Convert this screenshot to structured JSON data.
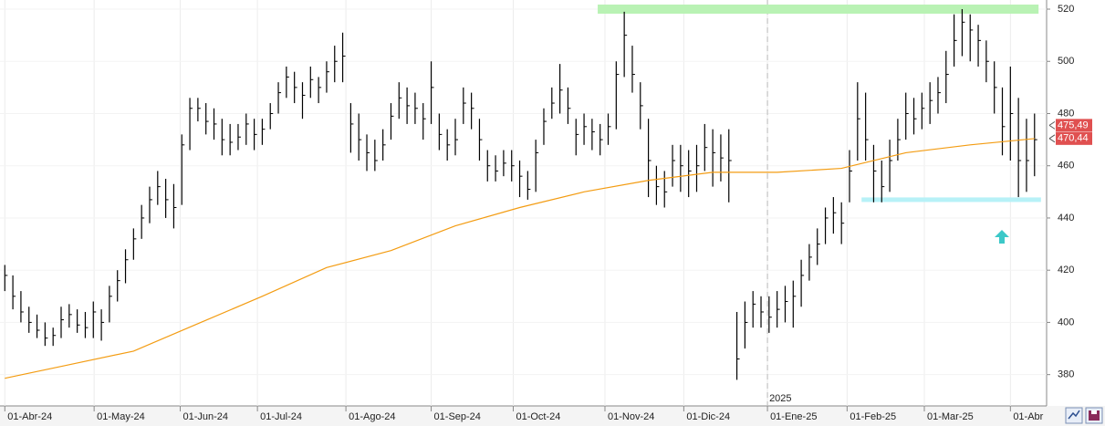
{
  "chart_data": {
    "type": "hlc",
    "x": [
      0,
      1,
      2,
      3,
      4,
      5,
      6,
      7,
      8,
      9,
      10,
      11,
      12,
      13,
      14,
      15,
      16,
      17,
      18,
      19,
      20,
      21,
      22,
      23,
      24,
      25,
      26,
      27,
      28,
      29,
      30,
      31,
      32,
      33,
      34,
      35,
      36,
      37,
      38,
      39,
      40,
      41,
      42,
      43,
      44,
      45,
      46,
      47,
      48,
      49,
      50,
      51,
      52,
      53,
      54,
      55,
      56,
      57,
      58,
      59,
      60,
      61,
      62,
      63,
      64,
      65,
      66,
      67,
      68,
      69,
      70,
      71,
      72,
      73,
      74,
      75,
      76,
      77,
      78,
      79,
      80,
      81,
      82,
      83,
      84,
      85,
      86,
      87,
      88,
      89,
      90,
      91,
      92,
      93,
      94,
      95,
      96,
      97,
      98,
      99,
      100,
      101,
      102,
      103,
      104,
      105,
      106,
      107,
      108,
      109,
      110,
      111,
      112,
      113,
      114,
      115,
      116,
      117,
      118,
      119,
      120,
      121,
      122,
      123,
      124,
      125,
      126,
      127,
      128
    ],
    "bars": [
      [
        422,
        412,
        418
      ],
      [
        418,
        405,
        410
      ],
      [
        412,
        400,
        404
      ],
      [
        406,
        396,
        400
      ],
      [
        403,
        394,
        397
      ],
      [
        400,
        391,
        394
      ],
      [
        398,
        391,
        395
      ],
      [
        406,
        394,
        401
      ],
      [
        407,
        398,
        403
      ],
      [
        405,
        396,
        399
      ],
      [
        404,
        394,
        398
      ],
      [
        408,
        394,
        404
      ],
      [
        405,
        393,
        400
      ],
      [
        414,
        400,
        410
      ],
      [
        420,
        408,
        416
      ],
      [
        428,
        415,
        424
      ],
      [
        436,
        424,
        432
      ],
      [
        445,
        432,
        440
      ],
      [
        452,
        438,
        447
      ],
      [
        458,
        445,
        452
      ],
      [
        455,
        440,
        447
      ],
      [
        453,
        436,
        444
      ],
      [
        472,
        445,
        468
      ],
      [
        486,
        466,
        482
      ],
      [
        486,
        477,
        482
      ],
      [
        484,
        472,
        477
      ],
      [
        482,
        470,
        476
      ],
      [
        478,
        464,
        470
      ],
      [
        476,
        464,
        469
      ],
      [
        476,
        466,
        471
      ],
      [
        480,
        468,
        476
      ],
      [
        478,
        466,
        472
      ],
      [
        478,
        468,
        474
      ],
      [
        484,
        474,
        480
      ],
      [
        492,
        480,
        488
      ],
      [
        498,
        486,
        494
      ],
      [
        496,
        484,
        490
      ],
      [
        492,
        478,
        487
      ],
      [
        498,
        486,
        493
      ],
      [
        494,
        484,
        490
      ],
      [
        500,
        488,
        496
      ],
      [
        506,
        492,
        500
      ],
      [
        511,
        492,
        502
      ],
      [
        484,
        465,
        476
      ],
      [
        480,
        462,
        470
      ],
      [
        472,
        458,
        465
      ],
      [
        470,
        458,
        462
      ],
      [
        474,
        462,
        468
      ],
      [
        484,
        470,
        479
      ],
      [
        492,
        478,
        486
      ],
      [
        490,
        476,
        483
      ],
      [
        488,
        476,
        482
      ],
      [
        484,
        470,
        478
      ],
      [
        500,
        476,
        490
      ],
      [
        480,
        466,
        472
      ],
      [
        474,
        462,
        468
      ],
      [
        478,
        464,
        470
      ],
      [
        490,
        476,
        484
      ],
      [
        488,
        474,
        482
      ],
      [
        478,
        462,
        470
      ],
      [
        466,
        454,
        460
      ],
      [
        464,
        454,
        458
      ],
      [
        466,
        456,
        461
      ],
      [
        466,
        454,
        460
      ],
      [
        462,
        448,
        456
      ],
      [
        458,
        447,
        451
      ],
      [
        470,
        450,
        465
      ],
      [
        482,
        468,
        477
      ],
      [
        490,
        478,
        484
      ],
      [
        499,
        480,
        489
      ],
      [
        490,
        476,
        482
      ],
      [
        478,
        464,
        472
      ],
      [
        480,
        468,
        475
      ],
      [
        478,
        466,
        473
      ],
      [
        476,
        464,
        470
      ],
      [
        480,
        468,
        475
      ],
      [
        500,
        474,
        495
      ],
      [
        519,
        494,
        510
      ],
      [
        506,
        488,
        495
      ],
      [
        492,
        474,
        483
      ],
      [
        478,
        448,
        462
      ],
      [
        460,
        445,
        452
      ],
      [
        458,
        444,
        450
      ],
      [
        468,
        452,
        462
      ],
      [
        468,
        450,
        460
      ],
      [
        466,
        448,
        458
      ],
      [
        468,
        450,
        460
      ],
      [
        476,
        458,
        467
      ],
      [
        474,
        452,
        465
      ],
      [
        472,
        454,
        463
      ],
      [
        474,
        446,
        462
      ],
      [
        404,
        378,
        386
      ],
      [
        408,
        390,
        400
      ],
      [
        412,
        398,
        407
      ],
      [
        410,
        398,
        404
      ],
      [
        410,
        396,
        402
      ],
      [
        412,
        398,
        405
      ],
      [
        414,
        400,
        408
      ],
      [
        416,
        398,
        410
      ],
      [
        424,
        406,
        418
      ],
      [
        430,
        416,
        425
      ],
      [
        436,
        422,
        430
      ],
      [
        444,
        430,
        440
      ],
      [
        448,
        434,
        442
      ],
      [
        446,
        430,
        438
      ],
      [
        466,
        446,
        458
      ],
      [
        492,
        462,
        478
      ],
      [
        488,
        462,
        470
      ],
      [
        468,
        446,
        458
      ],
      [
        462,
        446,
        452
      ],
      [
        470,
        450,
        462
      ],
      [
        478,
        462,
        470
      ],
      [
        488,
        470,
        480
      ],
      [
        486,
        472,
        478
      ],
      [
        488,
        474,
        482
      ],
      [
        492,
        476,
        485
      ],
      [
        494,
        480,
        488
      ],
      [
        504,
        484,
        495
      ],
      [
        518,
        498,
        508
      ],
      [
        520,
        502,
        515
      ],
      [
        518,
        500,
        512
      ],
      [
        514,
        498,
        508
      ],
      [
        508,
        492,
        500
      ],
      [
        500,
        480,
        490
      ],
      [
        490,
        464,
        475
      ],
      [
        498,
        462,
        480
      ],
      [
        486,
        448,
        462
      ],
      [
        478,
        450,
        462
      ],
      [
        480,
        456,
        470
      ]
    ],
    "bar_color": "#000000",
    "moving_average": {
      "color": "#f39c12",
      "x": [
        0,
        8,
        16,
        24,
        32,
        40,
        48,
        56,
        64,
        72,
        80,
        88,
        96,
        104,
        112,
        120,
        128
      ],
      "values": [
        378.6,
        383.8,
        389,
        399.5,
        410,
        421,
        427.5,
        437,
        444,
        450,
        454.4,
        457.5,
        457.5,
        459,
        465,
        468,
        470.4
      ]
    },
    "levels": [
      {
        "value": 520,
        "from": 73.7,
        "to": 128.5,
        "color": "#b9f2b4"
      },
      {
        "value": 447,
        "from": 106.5,
        "to": 128.8,
        "color": "#b7f1f7"
      }
    ],
    "price_markers": [
      {
        "value": 475.49,
        "label": "475,49"
      },
      {
        "value": 470.44,
        "label": "470,44"
      }
    ],
    "year_marker": {
      "value": 94.8,
      "label": "2025"
    },
    "xlim": [
      -0.6,
      129.5
    ],
    "ylim": [
      368,
      523.5
    ],
    "xticks": [
      {
        "value": 0,
        "label": "01-Abr-24"
      },
      {
        "value": 11.1,
        "label": "01-May-24"
      },
      {
        "value": 21.8,
        "label": "01-Jun-24"
      },
      {
        "value": 31.4,
        "label": "01-Jul-24"
      },
      {
        "value": 42.4,
        "label": "01-Ago-24"
      },
      {
        "value": 53,
        "label": "01-Sep-24"
      },
      {
        "value": 63.2,
        "label": "01-Oct-24"
      },
      {
        "value": 74.6,
        "label": "01-Nov-24"
      },
      {
        "value": 84.4,
        "label": "01-Dic-24"
      },
      {
        "value": 94.8,
        "label": "01-Ene-25"
      },
      {
        "value": 104.7,
        "label": "01-Feb-25"
      },
      {
        "value": 114.3,
        "label": "01-Mar-25"
      },
      {
        "value": 125,
        "label": "01-Abr"
      }
    ],
    "yticks": [
      380,
      400,
      420,
      440,
      460,
      480,
      500,
      520
    ],
    "grid": true
  }
}
